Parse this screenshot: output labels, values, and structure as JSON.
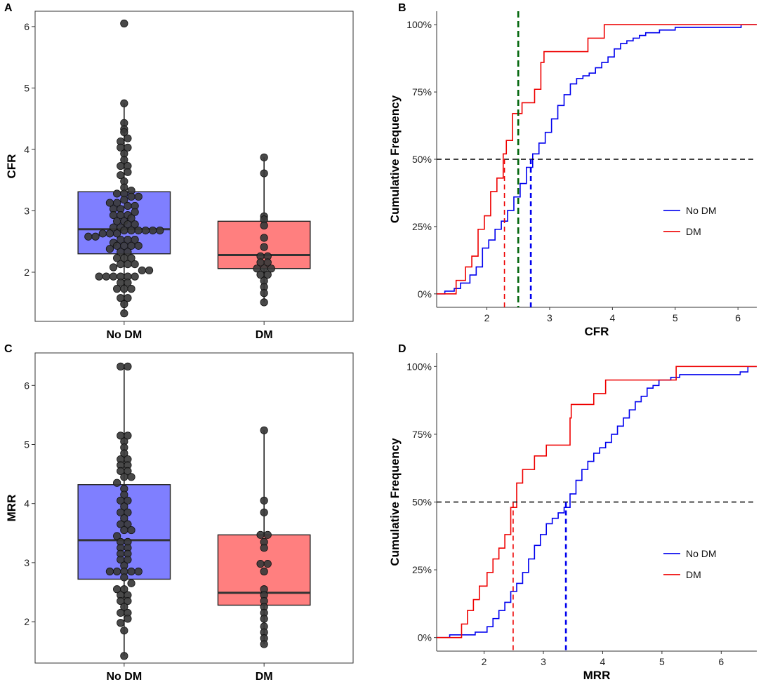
{
  "colors": {
    "no_dm_box": "#7f7fff",
    "dm_box": "#ff7f7f",
    "no_dm_line": "#0000ee",
    "dm_line": "#ee0000",
    "dot": "#3a3a3a",
    "median_line": "#333333",
    "threshold_line": "#00650b"
  },
  "chart_data": [
    {
      "panel": "A",
      "type": "box",
      "ylabel": "CFR",
      "categories": [
        "No DM",
        "DM"
      ],
      "ylim": [
        1.2,
        6.25
      ],
      "yticks": [
        2,
        3,
        4,
        5,
        6
      ],
      "boxes": [
        {
          "name": "No DM",
          "min": 1.33,
          "q1": 2.3,
          "median": 2.7,
          "q3": 3.31,
          "max": 4.75,
          "outliers": [
            6.05
          ]
        },
        {
          "name": "DM",
          "min": 1.51,
          "q1": 2.06,
          "median": 2.28,
          "q3": 2.83,
          "max": 3.87,
          "outliers": []
        }
      ],
      "points": [
        [
          1.33,
          1.48,
          1.58,
          1.58,
          1.73,
          1.73,
          1.73,
          1.83,
          1.83,
          1.93,
          1.93,
          1.93,
          1.93,
          1.93,
          1.93,
          2.03,
          2.03,
          2.08,
          2.13,
          2.13,
          2.13,
          2.23,
          2.23,
          2.23,
          2.33,
          2.33,
          2.38,
          2.43,
          2.43,
          2.43,
          2.43,
          2.48,
          2.53,
          2.53,
          2.53,
          2.58,
          2.58,
          2.63,
          2.63,
          2.63,
          2.68,
          2.68,
          2.68,
          2.68,
          2.68,
          2.68,
          2.73,
          2.73,
          2.78,
          2.78,
          2.83,
          2.83,
          2.88,
          2.93,
          2.93,
          2.93,
          2.98,
          3.03,
          3.03,
          3.08,
          3.08,
          3.13,
          3.13,
          3.18,
          3.23,
          3.23,
          3.28,
          3.28,
          3.33,
          3.38,
          3.48,
          3.58,
          3.63,
          3.73,
          3.73,
          3.83,
          3.93,
          4.03,
          4.03,
          4.13,
          4.18,
          4.28,
          4.33,
          4.43,
          4.75,
          6.05
        ],
        [
          1.51,
          1.66,
          1.76,
          1.86,
          1.96,
          1.96,
          2.06,
          2.06,
          2.06,
          2.16,
          2.16,
          2.26,
          2.26,
          2.41,
          2.56,
          2.76,
          2.86,
          2.91,
          3.61,
          3.87
        ]
      ]
    },
    {
      "panel": "B",
      "type": "line",
      "xlabel": "CFR",
      "ylabel": "Cumulative Frequency",
      "xlim": [
        1.2,
        6.3
      ],
      "ylim": [
        -0.05,
        1.05
      ],
      "xticks": [
        2,
        3,
        4,
        5,
        6
      ],
      "yticks": [
        "0%",
        "25%",
        "50%",
        "75%",
        "100%"
      ],
      "series": [
        {
          "name": "No DM",
          "x": [
            1.2,
            1.33,
            1.48,
            1.58,
            1.73,
            1.83,
            1.93,
            2.03,
            2.13,
            2.23,
            2.33,
            2.43,
            2.53,
            2.63,
            2.73,
            2.83,
            2.93,
            3.03,
            3.13,
            3.23,
            3.33,
            3.43,
            3.53,
            3.63,
            3.73,
            3.83,
            3.93,
            4.03,
            4.13,
            4.23,
            4.33,
            4.43,
            4.53,
            4.75,
            5.0,
            6.05,
            6.3
          ],
          "y": [
            0,
            0.01,
            0.02,
            0.04,
            0.07,
            0.1,
            0.17,
            0.2,
            0.24,
            0.27,
            0.31,
            0.36,
            0.41,
            0.47,
            0.52,
            0.56,
            0.6,
            0.65,
            0.7,
            0.74,
            0.78,
            0.8,
            0.81,
            0.82,
            0.84,
            0.86,
            0.88,
            0.91,
            0.93,
            0.94,
            0.95,
            0.96,
            0.97,
            0.98,
            0.99,
            1.0,
            1.0
          ]
        },
        {
          "name": "DM",
          "x": [
            1.2,
            1.51,
            1.66,
            1.76,
            1.86,
            1.96,
            2.06,
            2.16,
            2.26,
            2.31,
            2.41,
            2.56,
            2.76,
            2.86,
            2.91,
            3.61,
            3.87,
            6.3
          ],
          "y": [
            0,
            0.05,
            0.1,
            0.14,
            0.24,
            0.29,
            0.38,
            0.43,
            0.52,
            0.57,
            0.67,
            0.71,
            0.76,
            0.86,
            0.9,
            0.95,
            1.0,
            1.0
          ]
        }
      ],
      "hline": 0.5,
      "vlines": [
        {
          "x": 2.28,
          "color": "dm_line"
        },
        {
          "x": 2.7,
          "color": "no_dm_line"
        },
        {
          "x": 2.5,
          "color": "threshold_line",
          "full_height": true
        }
      ],
      "legend": {
        "position": "right",
        "entries": [
          "No DM",
          "DM"
        ]
      }
    },
    {
      "panel": "C",
      "type": "box",
      "ylabel": "MRR",
      "categories": [
        "No DM",
        "DM"
      ],
      "ylim": [
        1.3,
        6.55
      ],
      "yticks": [
        2,
        3,
        4,
        5,
        6
      ],
      "boxes": [
        {
          "name": "No DM",
          "min": 1.42,
          "q1": 2.72,
          "median": 3.38,
          "q3": 4.32,
          "max": 6.32,
          "outliers": []
        },
        {
          "name": "DM",
          "min": 1.62,
          "q1": 2.28,
          "median": 2.49,
          "q3": 3.47,
          "max": 5.24,
          "outliers": []
        }
      ],
      "points": [
        [
          1.42,
          1.85,
          1.98,
          2.05,
          2.15,
          2.15,
          2.25,
          2.35,
          2.35,
          2.45,
          2.45,
          2.55,
          2.55,
          2.65,
          2.75,
          2.85,
          2.85,
          2.85,
          2.85,
          2.85,
          2.95,
          3.05,
          3.05,
          3.15,
          3.15,
          3.25,
          3.25,
          3.35,
          3.35,
          3.45,
          3.55,
          3.55,
          3.65,
          3.65,
          3.75,
          3.85,
          3.85,
          3.95,
          4.05,
          4.05,
          4.15,
          4.25,
          4.35,
          4.45,
          4.45,
          4.55,
          4.55,
          4.65,
          4.65,
          4.75,
          4.75,
          4.85,
          4.95,
          5.05,
          5.15,
          5.15,
          6.32,
          6.32
        ],
        [
          1.62,
          1.72,
          1.82,
          1.92,
          2.05,
          2.15,
          2.25,
          2.35,
          2.45,
          2.55,
          2.85,
          2.98,
          2.98,
          3.25,
          3.35,
          3.47,
          3.47,
          3.85,
          4.05,
          5.24
        ]
      ]
    },
    {
      "panel": "D",
      "type": "line",
      "xlabel": "MRR",
      "ylabel": "Cumulative Frequency",
      "xlim": [
        1.2,
        6.6
      ],
      "ylim": [
        -0.05,
        1.05
      ],
      "xticks": [
        2,
        3,
        4,
        5,
        6
      ],
      "yticks": [
        "0%",
        "25%",
        "50%",
        "75%",
        "100%"
      ],
      "series": [
        {
          "name": "No DM",
          "x": [
            1.2,
            1.42,
            1.55,
            1.85,
            2.05,
            2.15,
            2.25,
            2.35,
            2.45,
            2.55,
            2.65,
            2.75,
            2.85,
            2.95,
            3.05,
            3.15,
            3.25,
            3.35,
            3.45,
            3.55,
            3.65,
            3.75,
            3.85,
            3.95,
            4.05,
            4.15,
            4.25,
            4.35,
            4.45,
            4.55,
            4.65,
            4.75,
            4.85,
            4.95,
            5.15,
            5.3,
            6.32,
            6.45,
            6.6
          ],
          "y": [
            0,
            0.01,
            0.01,
            0.02,
            0.04,
            0.07,
            0.1,
            0.13,
            0.17,
            0.2,
            0.24,
            0.29,
            0.34,
            0.38,
            0.42,
            0.44,
            0.46,
            0.48,
            0.53,
            0.58,
            0.62,
            0.65,
            0.68,
            0.7,
            0.72,
            0.75,
            0.78,
            0.81,
            0.84,
            0.87,
            0.89,
            0.92,
            0.93,
            0.95,
            0.96,
            0.97,
            0.98,
            1.0,
            1.0
          ]
        },
        {
          "name": "DM",
          "x": [
            1.2,
            1.62,
            1.72,
            1.82,
            1.92,
            2.05,
            2.15,
            2.25,
            2.35,
            2.45,
            2.55,
            2.65,
            2.85,
            3.05,
            3.45,
            3.47,
            3.85,
            4.05,
            5.24,
            6.6
          ],
          "y": [
            0,
            0.05,
            0.1,
            0.14,
            0.19,
            0.24,
            0.29,
            0.33,
            0.38,
            0.48,
            0.57,
            0.62,
            0.67,
            0.71,
            0.81,
            0.86,
            0.9,
            0.95,
            1.0,
            1.0
          ]
        }
      ],
      "hline": 0.5,
      "vlines": [
        {
          "x": 2.49,
          "color": "dm_line"
        },
        {
          "x": 3.38,
          "color": "no_dm_line"
        }
      ],
      "legend": {
        "position": "right",
        "entries": [
          "No DM",
          "DM"
        ]
      }
    }
  ]
}
